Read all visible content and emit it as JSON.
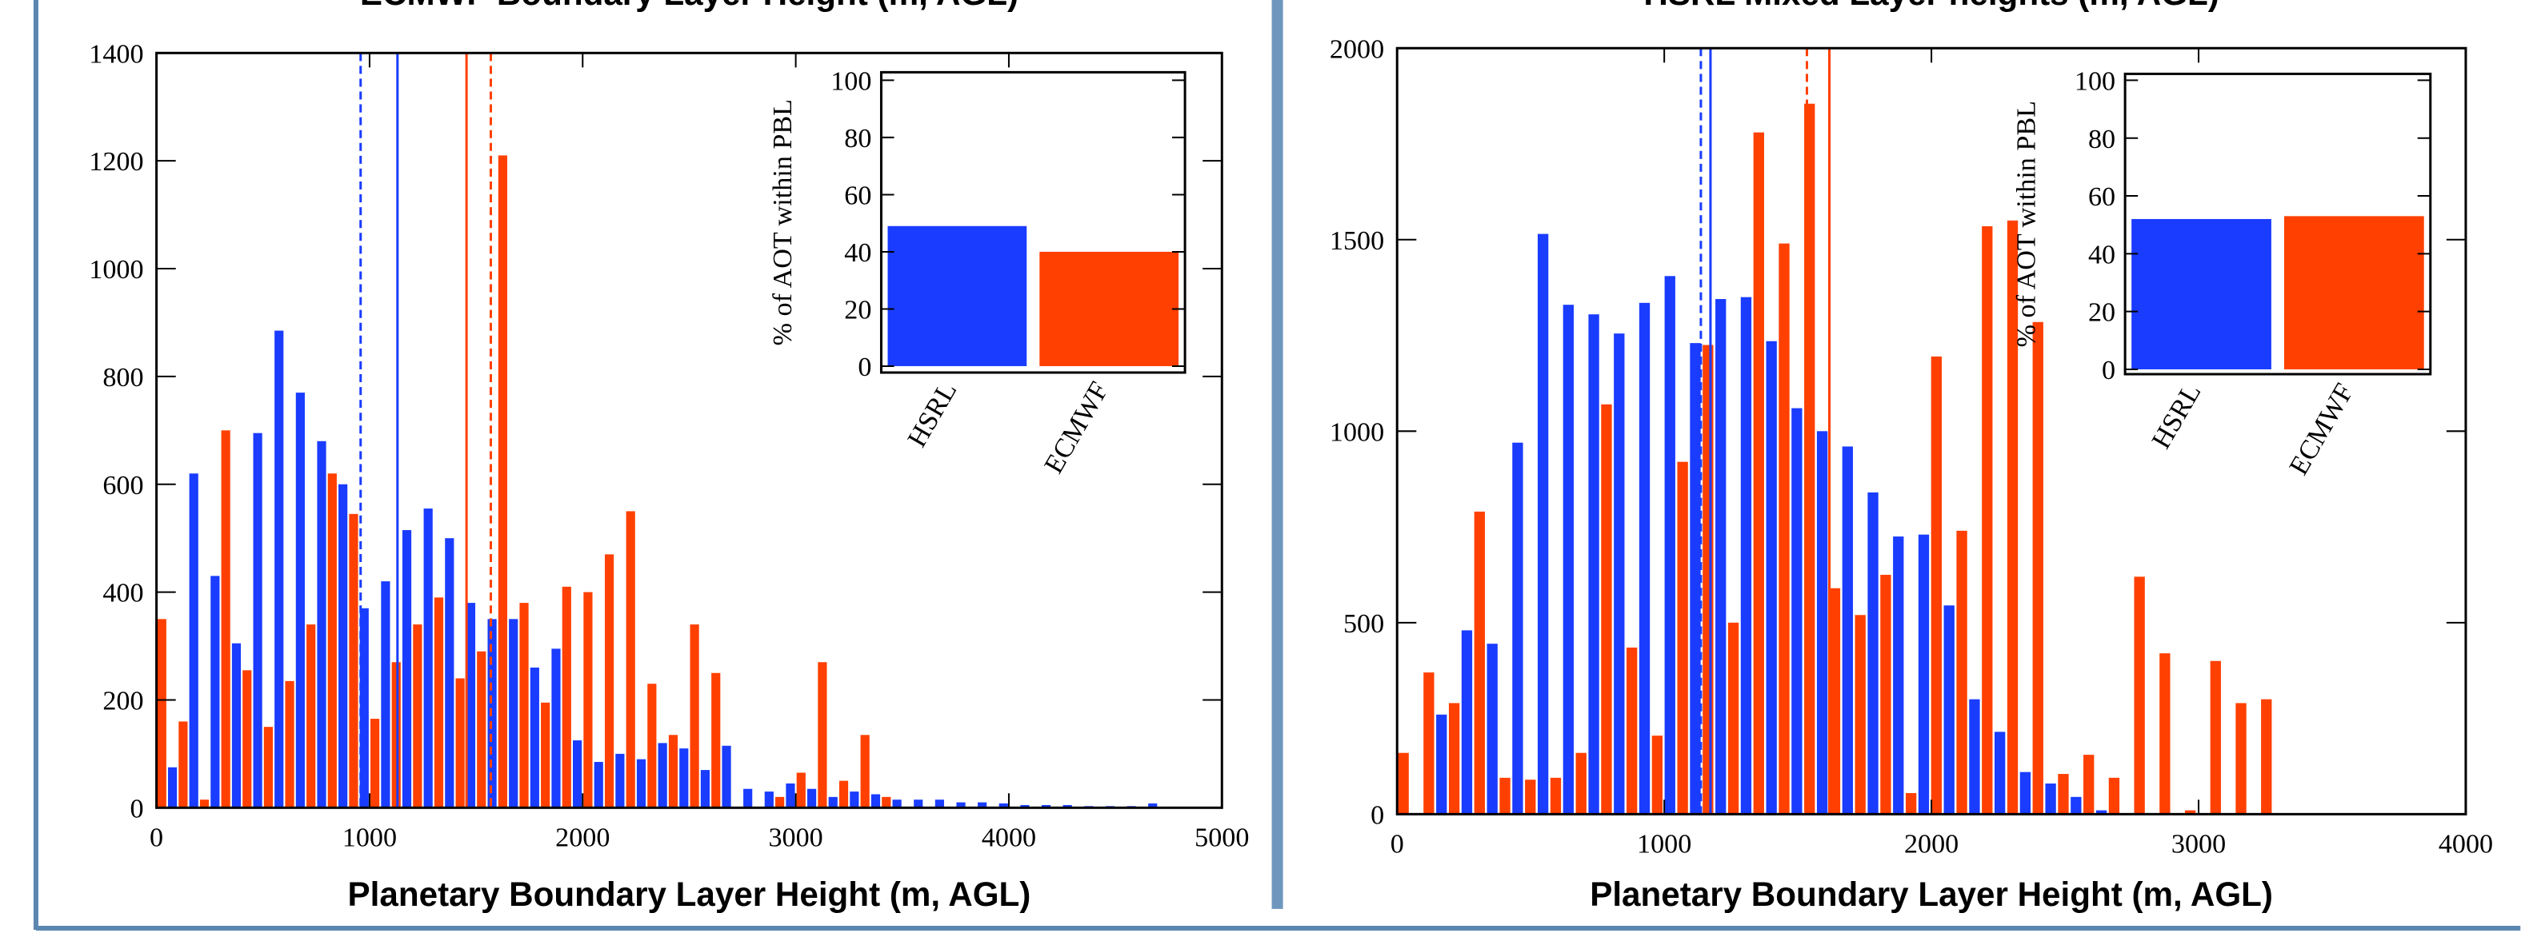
{
  "chart_data": [
    {
      "type": "histogram",
      "title": "ECMWF Boundary Layer Height (m, AGL)",
      "x_label": "Planetary Boundary Layer Height (m, AGL)",
      "bins": [
        0,
        100,
        200,
        300,
        400,
        500,
        600,
        700,
        800,
        900,
        1000,
        1100,
        1200,
        1300,
        1400,
        1500,
        1600,
        1700,
        1800,
        1900,
        2000,
        2100,
        2200,
        2300,
        2400,
        2500,
        2600,
        2700,
        2800,
        2900,
        3000,
        3100,
        3200,
        3300,
        3400,
        3500,
        3600,
        3700,
        3800,
        3900,
        4000,
        4100,
        4200,
        4300,
        4400,
        4500,
        4600,
        4700,
        4800,
        4900,
        5000
      ],
      "series": [
        {
          "color": "#ff4000",
          "values": [
            350,
            160,
            15,
            700,
            255,
            150,
            235,
            340,
            620,
            545,
            165,
            270,
            340,
            390,
            240,
            290,
            1210,
            380,
            195,
            410,
            400,
            470,
            550,
            230,
            135,
            340,
            250,
            0,
            0,
            20,
            65,
            270,
            50,
            135,
            20,
            0,
            0,
            0,
            0,
            0,
            0,
            0,
            0,
            0,
            0,
            0,
            0,
            0,
            0,
            0
          ]
        },
        {
          "color": "#1a3cff",
          "values": [
            75,
            620,
            430,
            305,
            695,
            885,
            770,
            680,
            600,
            370,
            420,
            515,
            555,
            500,
            380,
            350,
            350,
            260,
            295,
            125,
            85,
            100,
            90,
            120,
            110,
            70,
            115,
            35,
            30,
            45,
            35,
            20,
            30,
            25,
            15,
            15,
            15,
            10,
            10,
            8,
            5,
            5,
            5,
            3,
            3,
            3,
            8,
            2,
            0,
            0
          ]
        }
      ],
      "reference_lines": [
        {
          "value": 958,
          "color": "#1a3cff",
          "style": "dashed"
        },
        {
          "value": 1131,
          "color": "#1a3cff",
          "style": "solid"
        },
        {
          "value": 1455,
          "color": "#ff4000",
          "style": "solid"
        },
        {
          "value": 1569,
          "color": "#ff4000",
          "style": "dashed"
        }
      ],
      "xlim": [
        0,
        5000
      ],
      "xticks": [
        0,
        1000,
        2000,
        3000,
        4000,
        5000
      ],
      "ylim": [
        0,
        1400
      ],
      "yticks": [
        0,
        200,
        400,
        600,
        800,
        1000,
        1200,
        1400
      ]
    },
    {
      "type": "bar",
      "y_label": "% of AOT within PBL",
      "categories": [
        "HSRL",
        "ECMWF"
      ],
      "values": [
        49,
        40
      ],
      "colors": [
        "#1a3cff",
        "#ff4000"
      ],
      "ylim": [
        0,
        100
      ],
      "yticks": [
        0,
        20,
        40,
        60,
        80,
        100
      ]
    },
    {
      "type": "histogram",
      "title": "HSRL Mixed Layer heights (m, AGL)",
      "x_label": "Planetary Boundary Layer Height (m, AGL)",
      "bins": [
        0,
        95,
        190,
        285,
        380,
        475,
        570,
        665,
        760,
        855,
        950,
        1045,
        1140,
        1235,
        1330,
        1425,
        1520,
        1615,
        1710,
        1805,
        1900,
        1995,
        2090,
        2185,
        2280,
        2375,
        2470,
        2565,
        2660,
        2755,
        2850,
        2945,
        3040,
        3135,
        3230,
        3325,
        3420
      ],
      "series": [
        {
          "color": "#ff4000",
          "values": [
            160,
            370,
            290,
            790,
            95,
            90,
            95,
            160,
            1070,
            435,
            205,
            920,
            1225,
            500,
            1780,
            1490,
            1855,
            590,
            520,
            625,
            55,
            1195,
            740,
            1535,
            1550,
            1285,
            105,
            155,
            95,
            620,
            420,
            10,
            400,
            290,
            300,
            0
          ]
        },
        {
          "color": "#1a3cff",
          "values": [
            0,
            260,
            480,
            445,
            970,
            1515,
            1330,
            1305,
            1255,
            1335,
            1405,
            1230,
            1345,
            1350,
            1235,
            1060,
            1000,
            960,
            840,
            725,
            730,
            545,
            300,
            215,
            110,
            80,
            45,
            10,
            0,
            0,
            0,
            0,
            0,
            0,
            0,
            0
          ]
        }
      ],
      "reference_lines": [
        {
          "value": 1137,
          "color": "#1a3cff",
          "style": "dashed"
        },
        {
          "value": 1173,
          "color": "#1a3cff",
          "style": "solid"
        },
        {
          "value": 1534,
          "color": "#ff4000",
          "style": "dashed"
        },
        {
          "value": 1618,
          "color": "#ff4000",
          "style": "solid"
        }
      ],
      "xlim": [
        0,
        4000
      ],
      "xticks": [
        0,
        1000,
        2000,
        3000,
        4000
      ],
      "ylim": [
        0,
        2000
      ],
      "yticks": [
        0,
        500,
        1000,
        1500,
        2000
      ]
    },
    {
      "type": "bar",
      "y_label": "% of AOT within PBL",
      "categories": [
        "HSRL",
        "ECMWF"
      ],
      "values": [
        52,
        53
      ],
      "colors": [
        "#1a3cff",
        "#ff4000"
      ],
      "ylim": [
        0,
        100
      ],
      "yticks": [
        0,
        20,
        40,
        60,
        80,
        100
      ]
    }
  ]
}
